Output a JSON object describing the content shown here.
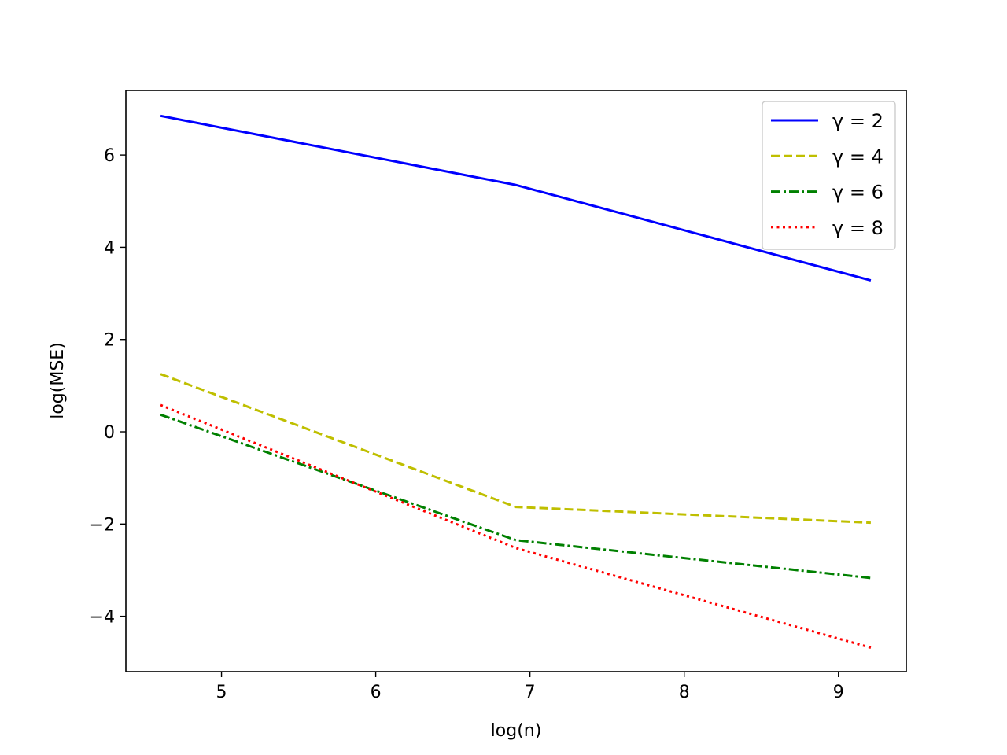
{
  "chart_data": {
    "type": "line",
    "xlabel": "log(n)",
    "ylabel": "log(MSE)",
    "x": [
      4.605,
      6.908,
      9.21
    ],
    "xlim": [
      4.38,
      9.44
    ],
    "ylim": [
      -5.2,
      7.4
    ],
    "xticks": [
      5,
      6,
      7,
      8,
      9
    ],
    "yticks": [
      -4,
      -2,
      0,
      2,
      4,
      6
    ],
    "grid": false,
    "legend_position": "top-right",
    "series": [
      {
        "name": "γ = 2",
        "values": [
          6.85,
          5.35,
          3.28
        ],
        "color": "#0000ff",
        "style": "solid"
      },
      {
        "name": "γ = 4",
        "values": [
          1.25,
          -1.63,
          -1.97
        ],
        "color": "#bfbf00",
        "style": "dashed"
      },
      {
        "name": "γ = 6",
        "values": [
          0.37,
          -2.35,
          -3.17
        ],
        "color": "#008000",
        "style": "dashdot"
      },
      {
        "name": "γ = 8",
        "values": [
          0.58,
          -2.52,
          -4.68
        ],
        "color": "#ff0000",
        "style": "dotted"
      }
    ]
  }
}
